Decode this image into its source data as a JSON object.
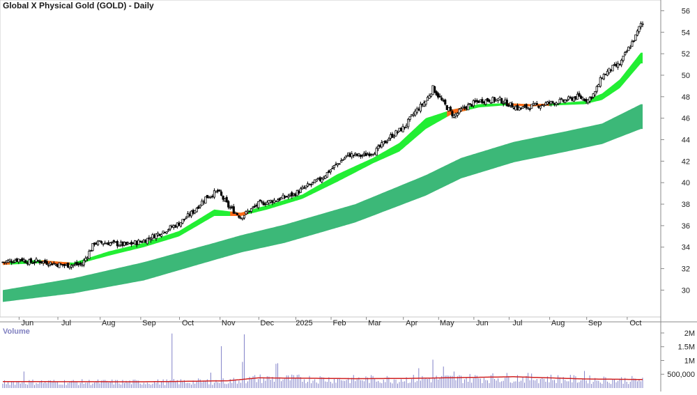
{
  "chart_data": {
    "type": "candlestick",
    "title": "Global X Physical Gold (GOLD) - Daily",
    "volume_label": "Volume",
    "price_axis": {
      "ticks": [
        "56",
        "54",
        "52",
        "50",
        "48",
        "46",
        "44",
        "42",
        "40",
        "38",
        "36",
        "34",
        "32",
        "30"
      ],
      "range": [
        27.5,
        57
      ]
    },
    "volume_axis": {
      "ticks": [
        "2M",
        "1.5M",
        "1M",
        "500,000"
      ],
      "range": [
        0,
        2100000
      ]
    },
    "x_axis": {
      "labels": [
        "Jun",
        "Jul",
        "Aug",
        "Sep",
        "Oct",
        "Nov",
        "Dec",
        "2025",
        "Feb",
        "Mar",
        "Apr",
        "May",
        "Jun",
        "Jul",
        "Aug",
        "Sep",
        "Oct"
      ],
      "label_bars": [
        14,
        36,
        60,
        83,
        105,
        128,
        150,
        171,
        191,
        211,
        232,
        252,
        272,
        292,
        315,
        336,
        359
      ]
    },
    "close_series_points": [
      [
        0,
        32.6
      ],
      [
        10,
        32.9
      ],
      [
        15,
        32.6
      ],
      [
        20,
        32.7
      ],
      [
        28,
        32.5
      ],
      [
        35,
        32.3
      ],
      [
        45,
        32.4
      ],
      [
        52,
        34.4
      ],
      [
        60,
        34.4
      ],
      [
        70,
        34.2
      ],
      [
        80,
        34.6
      ],
      [
        90,
        35.4
      ],
      [
        100,
        36.2
      ],
      [
        108,
        37.3
      ],
      [
        115,
        38.6
      ],
      [
        122,
        39.2
      ],
      [
        128,
        37.8
      ],
      [
        135,
        36.8
      ],
      [
        145,
        38.0
      ],
      [
        155,
        38.4
      ],
      [
        165,
        38.9
      ],
      [
        172,
        39.6
      ],
      [
        180,
        40.3
      ],
      [
        188,
        41.5
      ],
      [
        196,
        42.6
      ],
      [
        204,
        42.5
      ],
      [
        212,
        43.0
      ],
      [
        220,
        44.3
      ],
      [
        228,
        45.2
      ],
      [
        234,
        46.6
      ],
      [
        240,
        47.6
      ],
      [
        244,
        48.8
      ],
      [
        250,
        47.4
      ],
      [
        256,
        46.2
      ],
      [
        262,
        47.0
      ],
      [
        270,
        47.6
      ],
      [
        276,
        47.7
      ],
      [
        282,
        47.7
      ],
      [
        287,
        47.3
      ],
      [
        293,
        46.9
      ],
      [
        300,
        47.1
      ],
      [
        310,
        47.4
      ],
      [
        318,
        47.6
      ],
      [
        326,
        48.0
      ],
      [
        332,
        47.7
      ],
      [
        336,
        48.4
      ],
      [
        340,
        49.9
      ],
      [
        346,
        50.7
      ],
      [
        350,
        51.0
      ],
      [
        354,
        52.2
      ],
      [
        359,
        53.6
      ],
      [
        362,
        54.8
      ]
    ],
    "short_ma_band": {
      "upper": [
        [
          0,
          32.65
        ],
        [
          20,
          32.8
        ],
        [
          40,
          32.55
        ],
        [
          60,
          33.6
        ],
        [
          80,
          34.4
        ],
        [
          100,
          35.5
        ],
        [
          120,
          37.5
        ],
        [
          135,
          37.2
        ],
        [
          150,
          37.9
        ],
        [
          170,
          38.9
        ],
        [
          190,
          40.8
        ],
        [
          210,
          42.3
        ],
        [
          225,
          43.7
        ],
        [
          240,
          46.0
        ],
        [
          255,
          46.8
        ],
        [
          270,
          47.3
        ],
        [
          285,
          47.4
        ],
        [
          300,
          47.3
        ],
        [
          315,
          47.4
        ],
        [
          330,
          47.6
        ],
        [
          340,
          48.3
        ],
        [
          350,
          49.6
        ],
        [
          362,
          52.1
        ]
      ],
      "lower": [
        [
          0,
          32.35
        ],
        [
          20,
          32.5
        ],
        [
          40,
          32.3
        ],
        [
          60,
          33.2
        ],
        [
          80,
          34.0
        ],
        [
          100,
          35.0
        ],
        [
          120,
          36.9
        ],
        [
          135,
          36.9
        ],
        [
          150,
          37.5
        ],
        [
          170,
          38.5
        ],
        [
          190,
          40.1
        ],
        [
          210,
          41.8
        ],
        [
          225,
          42.9
        ],
        [
          240,
          45.0
        ],
        [
          255,
          46.4
        ],
        [
          270,
          47.0
        ],
        [
          285,
          47.2
        ],
        [
          300,
          47.1
        ],
        [
          315,
          47.2
        ],
        [
          330,
          47.3
        ],
        [
          340,
          47.7
        ],
        [
          350,
          48.8
        ],
        [
          362,
          51.1
        ]
      ]
    },
    "short_ma_declining_segments": [
      [
        0,
        4
      ],
      [
        22,
        38
      ],
      [
        129,
        139
      ],
      [
        252,
        263
      ],
      [
        286,
        310
      ]
    ],
    "long_ma_band": {
      "upper": [
        [
          0,
          30.0
        ],
        [
          40,
          31.1
        ],
        [
          80,
          32.6
        ],
        [
          120,
          34.4
        ],
        [
          135,
          35.1
        ],
        [
          160,
          36.1
        ],
        [
          200,
          38.0
        ],
        [
          240,
          40.7
        ],
        [
          260,
          42.3
        ],
        [
          290,
          43.8
        ],
        [
          320,
          44.8
        ],
        [
          340,
          45.5
        ],
        [
          362,
          47.3
        ]
      ],
      "lower": [
        [
          0,
          28.9
        ],
        [
          40,
          29.7
        ],
        [
          80,
          30.9
        ],
        [
          120,
          32.8
        ],
        [
          135,
          33.5
        ],
        [
          160,
          34.4
        ],
        [
          200,
          36.3
        ],
        [
          240,
          38.8
        ],
        [
          260,
          40.4
        ],
        [
          290,
          41.9
        ],
        [
          320,
          42.9
        ],
        [
          340,
          43.6
        ],
        [
          362,
          45.0
        ]
      ]
    },
    "volume_ma_points": [
      [
        0,
        235000
      ],
      [
        40,
        230000
      ],
      [
        80,
        228000
      ],
      [
        100,
        240000
      ],
      [
        128,
        265000
      ],
      [
        145,
        370000
      ],
      [
        175,
        355000
      ],
      [
        200,
        340000
      ],
      [
        230,
        350000
      ],
      [
        260,
        380000
      ],
      [
        290,
        410000
      ],
      [
        310,
        370000
      ],
      [
        330,
        330000
      ],
      [
        362,
        310000
      ]
    ],
    "volume_spikes": [
      [
        96,
        1980000
      ],
      [
        124,
        1520000
      ],
      [
        137,
        1950000
      ],
      [
        136,
        950000
      ],
      [
        155,
        880000
      ],
      [
        156,
        900000
      ],
      [
        244,
        1030000
      ],
      [
        236,
        720000
      ],
      [
        250,
        780000
      ],
      [
        256,
        600000
      ],
      [
        330,
        620000
      ],
      [
        12,
        600000
      ],
      [
        118,
        560000
      ]
    ],
    "colors": {
      "short_ma_rising": "#22ee33",
      "short_ma_falling": "#ff6a1a",
      "long_ma": "#3cb878",
      "volume_bar": "#8080c8",
      "volume_ma": "#d02020",
      "candle": "#000000",
      "axis": "#888888"
    }
  }
}
